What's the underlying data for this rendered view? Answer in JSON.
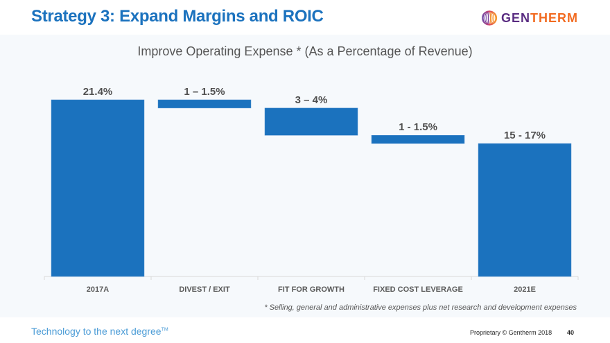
{
  "slide": {
    "title": "Strategy 3: Expand Margins and ROIC",
    "logo": {
      "icon": "gentherm-sphere-icon",
      "part1": "GEN",
      "part2": "THERM",
      "color1": "#5a2d82",
      "color2": "#f26b21"
    },
    "footnote": "* Selling, general and administrative expenses plus net research and development expenses",
    "tagline": "Technology to the next degree",
    "tagline_mark": "TM",
    "proprietary": "Proprietary © Gentherm 2018",
    "page_number": "40"
  },
  "chart_data": {
    "type": "bar",
    "subtype": "waterfall",
    "title": "Improve Operating Expense * (As a Percentage of Revenue)",
    "xlabel": "",
    "ylabel": "",
    "categories": [
      "2017A",
      "DIVEST / EXIT",
      "FIT FOR GROWTH",
      "FIXED COST LEVERAGE",
      "2021E"
    ],
    "data_labels": [
      "21.4%",
      "1 –  1.5%",
      "3 – 4%",
      "1 - 1.5%",
      "15 - 17%"
    ],
    "bars": [
      {
        "category": "2017A",
        "kind": "total",
        "start": 0,
        "end": 21.4
      },
      {
        "category": "DIVEST / EXIT",
        "kind": "decrease",
        "start": 21.4,
        "end": 20.4
      },
      {
        "category": "FIT FOR GROWTH",
        "kind": "decrease",
        "start": 20.4,
        "end": 17.1
      },
      {
        "category": "FIXED COST LEVERAGE",
        "kind": "decrease",
        "start": 17.1,
        "end": 16.1
      },
      {
        "category": "2021E",
        "kind": "total",
        "start": 0,
        "end": 16.1
      }
    ],
    "ylim": [
      0,
      21.4
    ],
    "grid": false,
    "legend": "none",
    "bar_color": "#1b72be"
  }
}
